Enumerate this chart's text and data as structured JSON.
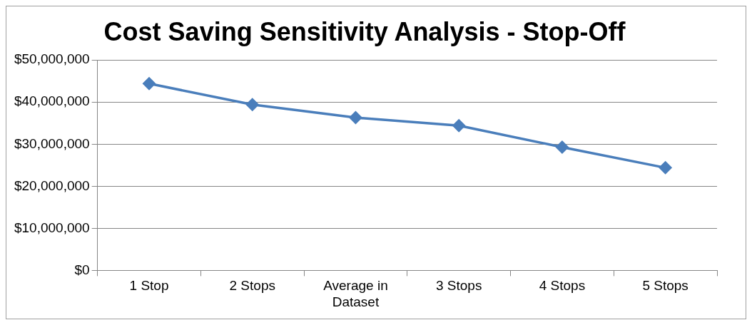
{
  "chart_data": {
    "type": "line",
    "title": "Cost Saving Sensitivity Analysis - Stop-Off",
    "categories": [
      "1 Stop",
      "2 Stops",
      "Average in Dataset",
      "3 Stops",
      "4 Stops",
      "5 Stops"
    ],
    "series": [
      {
        "color": "#4a7ebb",
        "values": [
          44400000,
          39400000,
          36300000,
          34400000,
          29300000,
          24400000
        ]
      }
    ],
    "ylim": [
      0,
      50000000
    ],
    "yticks": [
      {
        "value": 0,
        "label": "$0"
      },
      {
        "value": 10000000,
        "label": "$10,000,000"
      },
      {
        "value": 20000000,
        "label": "$20,000,000"
      },
      {
        "value": 30000000,
        "label": "$30,000,000"
      },
      {
        "value": 40000000,
        "label": "$40,000,000"
      },
      {
        "value": 50000000,
        "label": "$50,000,000"
      }
    ],
    "grid": "y",
    "legend": false,
    "marker": "diamond",
    "line_style": "solid"
  }
}
